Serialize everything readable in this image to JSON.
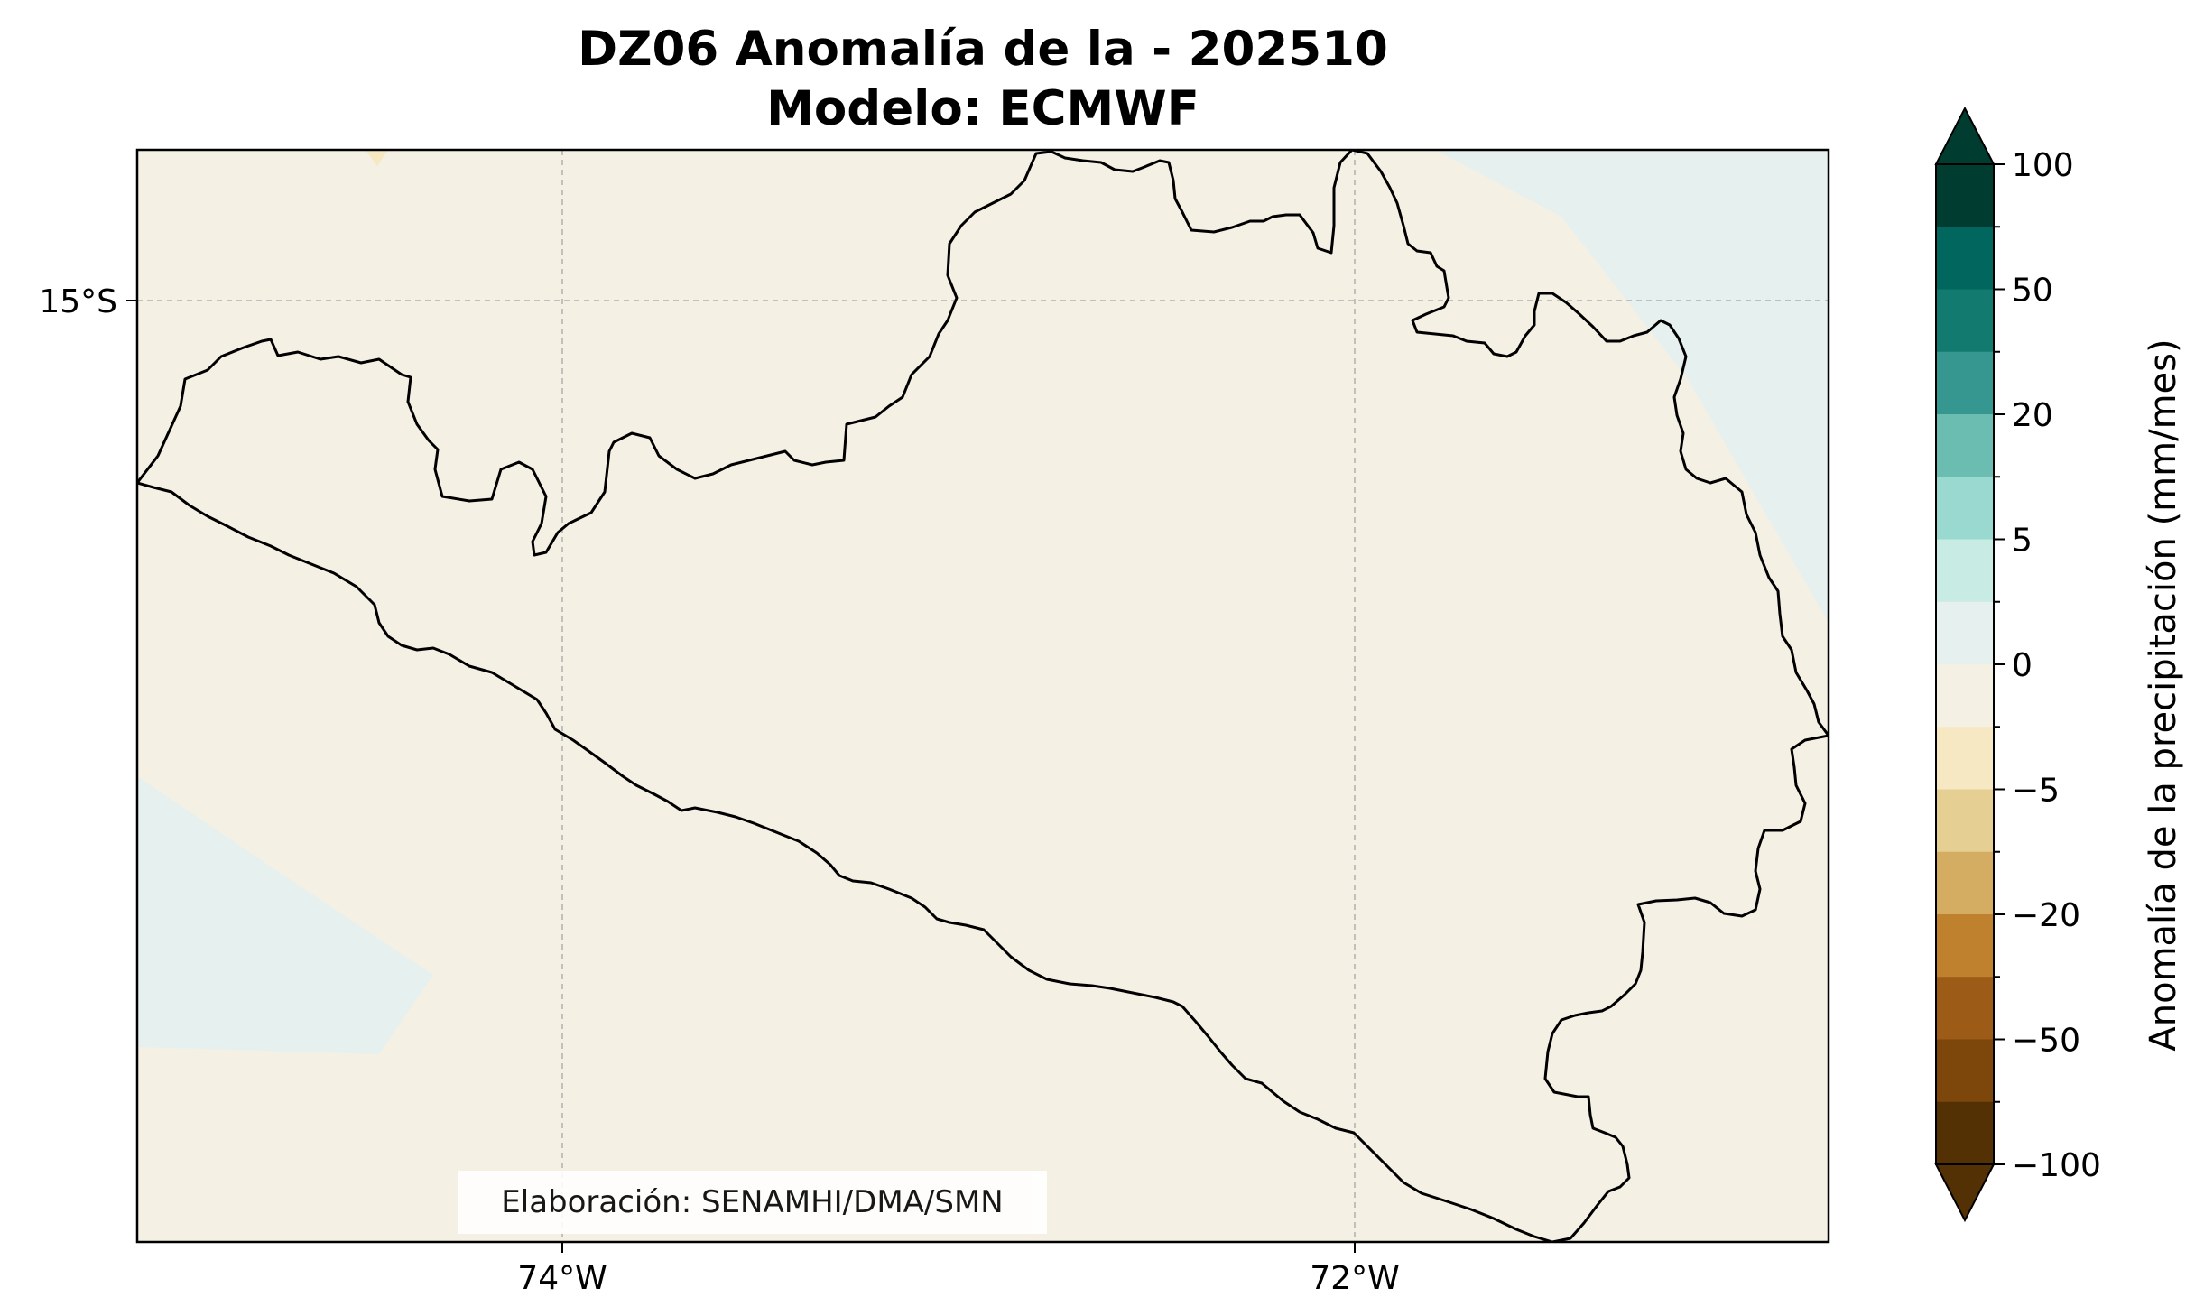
{
  "title": {
    "line1": "DZ06 Anomalía de la - 202510",
    "line2": "Modelo: ECMWF"
  },
  "map": {
    "lat_labels": [
      "15°S"
    ],
    "lon_labels": [
      "74°W",
      "72°W"
    ],
    "credit": "Elaboración: SENAMHI/DMA/SMN",
    "colors": {
      "near_zero_negative": "#f5f0e4",
      "near_zero_positive": "#e6f1ef",
      "boundary": "#000000",
      "gridline": "#b0b0b0"
    }
  },
  "colorbar": {
    "label": "Anomalía de la precipitación (mm/mes)",
    "tick_labels": [
      "100",
      "50",
      "20",
      "5",
      "0",
      "−5",
      "−20",
      "−50",
      "−100"
    ],
    "tick_values": [
      100,
      50,
      20,
      5,
      0,
      -5,
      -20,
      -50,
      -100
    ],
    "extend": "both",
    "colors_top_to_bottom": [
      "#003c30",
      "#01665e",
      "#137a70",
      "#35978f",
      "#6bbdb2",
      "#9ad9cf",
      "#c8ebe4",
      "#e6f1ef",
      "#f5f0e4",
      "#f6e8c3",
      "#e6cf93",
      "#d4ad62",
      "#bf812d",
      "#9c5b17",
      "#7d470c",
      "#543005"
    ],
    "over_color": "#003c30",
    "under_color": "#543005"
  }
}
